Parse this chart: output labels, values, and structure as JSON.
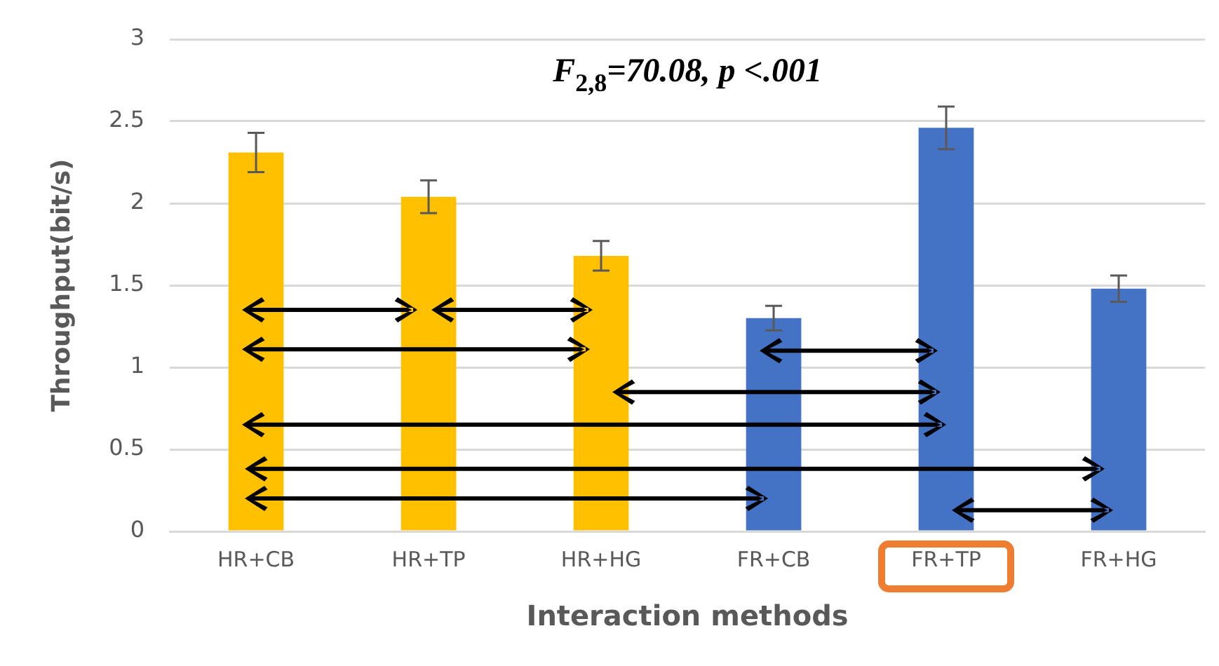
{
  "chart_data": {
    "type": "bar",
    "categories": [
      "HR+CB",
      "HR+TP",
      "HR+HG",
      "FR+CB",
      "FR+TP",
      "FR+HG"
    ],
    "values": [
      2.31,
      2.04,
      1.68,
      1.3,
      2.46,
      1.48
    ],
    "colors": [
      "#ffc000",
      "#ffc000",
      "#ffc000",
      "#4472c4",
      "#4472c4",
      "#4472c4"
    ],
    "errors": [
      0.12,
      0.1,
      0.09,
      0.075,
      0.13,
      0.08
    ],
    "xlabel": "Interaction methods",
    "ylabel": "Throughput(bit/s)",
    "annotations": [
      "F$_{2,8}$=70.08, p <.001"
    ],
    "ylim": [
      0,
      3
    ],
    "yticks": [
      0,
      0.5,
      1,
      1.5,
      2,
      2.5,
      3
    ],
    "grid": "y",
    "legend": false
  }
}
